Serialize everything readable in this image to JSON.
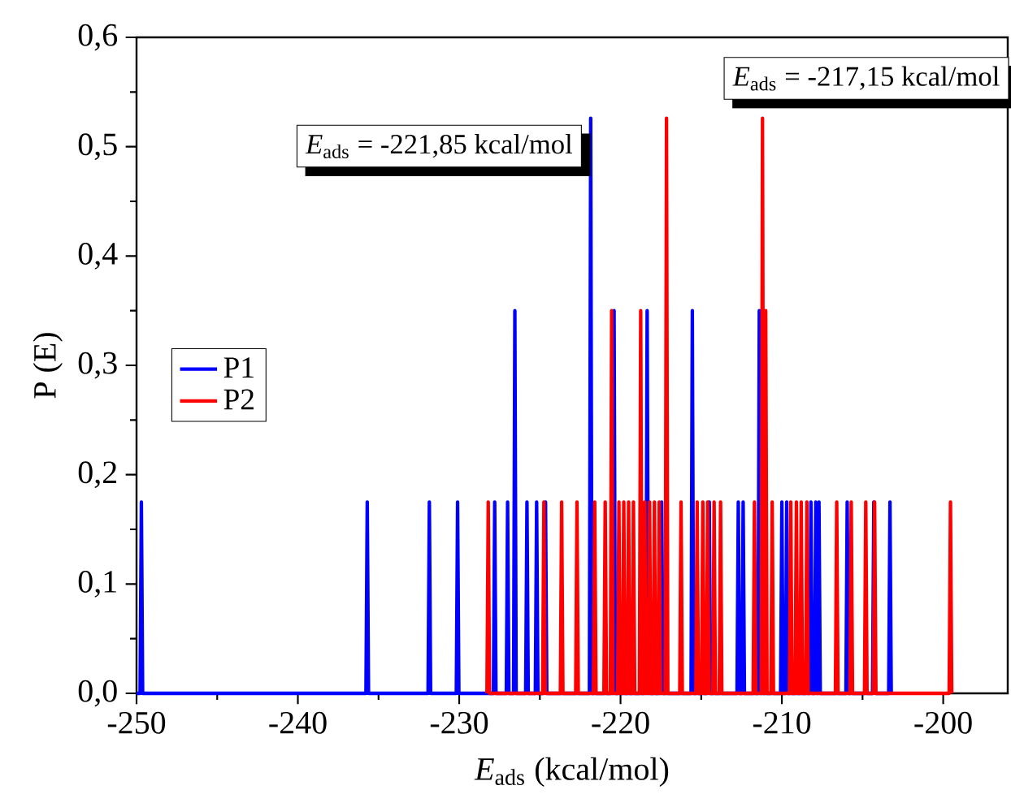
{
  "chart_data": {
    "type": "line",
    "xlabel": "*E*$_{ads}$ (kcal/mol)",
    "ylabel": "P (E)",
    "xlim": [
      -250,
      -196
    ],
    "ylim": [
      0,
      0.6
    ],
    "xticks": [
      -250,
      -240,
      -230,
      -220,
      -210,
      -200
    ],
    "yticks": [
      {
        "value": 0,
        "label": "0,0"
      },
      {
        "value": 0.1,
        "label": "0,1"
      },
      {
        "value": 0.2,
        "label": "0,2"
      },
      {
        "value": 0.3,
        "label": "0,3"
      },
      {
        "value": 0.4,
        "label": "0,4"
      },
      {
        "value": 0.5,
        "label": "0,5"
      },
      {
        "value": 0.6,
        "label": "0,6"
      }
    ],
    "legend": "left",
    "annotations": [
      {
        "text": "*E*$_{ads}$ = -221,85 kcal/mol",
        "x": -221.85,
        "y": 0.526
      },
      "*E*$_{ads}$ = -217,15 kcal/mol"
    ],
    "series": [
      {
        "name": "P1",
        "color": "#0000ff",
        "x": [
          -250,
          -249.78,
          -249.7,
          -249.62,
          -235.78,
          -235.7,
          -235.62,
          -231.93,
          -231.85,
          -231.77,
          -230.18,
          -230.1,
          -230.02,
          -227.88,
          -227.8,
          -227.72,
          -227.08,
          -227,
          -226.92,
          -226.63,
          -226.55,
          -226.47,
          -225.88,
          -225.8,
          -225.72,
          -225.28,
          -225.2,
          -225.12,
          -224.73,
          -224.65,
          -224.57,
          -221.93,
          -221.85,
          -221.77,
          -220.48,
          -220.4,
          -220.32,
          -218.43,
          -218.35,
          -218.27,
          -217.53,
          -217.45,
          -217.37,
          -215.63,
          -215.55,
          -215.47,
          -214.58,
          -214.5,
          -214.42,
          -212.78,
          -212.7,
          -212.62,
          -212.48,
          -212.4,
          -212.32,
          -211.48,
          -211.4,
          -211.32,
          -210.08,
          -210,
          -209.92,
          -209.78,
          -209.7,
          -209.62,
          -208.28,
          -208.2,
          -208.12,
          -207.98,
          -207.9,
          -207.82,
          -207.78,
          -207.7,
          -207.62,
          -206.03,
          -205.95,
          -205.87,
          -204.38,
          -204.3,
          -204.22,
          -203.38,
          -203.3,
          -203.22
        ],
        "values": [
          0,
          0,
          0.175,
          0,
          0,
          0.175,
          0,
          0,
          0.175,
          0,
          0,
          0.175,
          0,
          0,
          0.175,
          0,
          0,
          0.175,
          0,
          0,
          0.35,
          0,
          0,
          0.175,
          0,
          0,
          0.175,
          0,
          0,
          0.175,
          0,
          0,
          0.526,
          0,
          0,
          0.35,
          0,
          0,
          0.35,
          0,
          0,
          0.175,
          0,
          0,
          0.35,
          0,
          0,
          0.175,
          0,
          0,
          0.175,
          0,
          0,
          0.175,
          0,
          0,
          0.35,
          0,
          0,
          0.175,
          0,
          0,
          0.175,
          0,
          0,
          0.175,
          0,
          0,
          0.175,
          0,
          0,
          0.175,
          0,
          0,
          0.175,
          0,
          0,
          0.175,
          0,
          0,
          0.175,
          0
        ]
      },
      {
        "name": "P2",
        "color": "#ff0000",
        "x": [
          -228.28,
          -228.2,
          -228.12,
          -224.83,
          -224.75,
          -224.67,
          -223.73,
          -223.65,
          -223.57,
          -222.78,
          -222.7,
          -222.62,
          -221.68,
          -221.6,
          -221.52,
          -221.03,
          -220.95,
          -220.87,
          -220.63,
          -220.55,
          -220.47,
          -220.18,
          -220.1,
          -220.02,
          -219.88,
          -219.8,
          -219.72,
          -219.58,
          -219.5,
          -219.42,
          -219.28,
          -219.2,
          -219.12,
          -218.83,
          -218.75,
          -218.67,
          -218.58,
          -218.5,
          -218.42,
          -218.28,
          -218.2,
          -218.12,
          -217.98,
          -217.9,
          -217.82,
          -217.68,
          -217.6,
          -217.52,
          -217.23,
          -217.15,
          -217.07,
          -216.33,
          -216.25,
          -216.17,
          -215.33,
          -215.25,
          -215.17,
          -214.98,
          -214.9,
          -214.82,
          -214.68,
          -214.6,
          -214.52,
          -214.28,
          -214.2,
          -214.12,
          -213.88,
          -213.8,
          -213.72,
          -211.78,
          -211.7,
          -211.62,
          -211.28,
          -211.2,
          -211.12,
          -211.08,
          -211,
          -210.92,
          -210.68,
          -210.6,
          -210.52,
          -209.53,
          -209.45,
          -209.37,
          -209.18,
          -209.1,
          -209.02,
          -208.88,
          -208.8,
          -208.72,
          -208.53,
          -208.45,
          -208.37,
          -206.68,
          -206.6,
          -206.52,
          -205.78,
          -205.7,
          -205.62,
          -204.88,
          -204.8,
          -204.72,
          -204.33,
          -204.25,
          -204.17,
          -199.63,
          -199.55,
          -199.47
        ],
        "values": [
          0,
          0.175,
          0,
          0,
          0.175,
          0,
          0,
          0.175,
          0,
          0,
          0.175,
          0,
          0,
          0.175,
          0,
          0,
          0.175,
          0,
          0,
          0.35,
          0,
          0,
          0.175,
          0,
          0,
          0.175,
          0,
          0,
          0.175,
          0,
          0,
          0.175,
          0,
          0,
          0.35,
          0,
          0,
          0.175,
          0,
          0,
          0.175,
          0,
          0,
          0.175,
          0,
          0,
          0.175,
          0,
          0,
          0.526,
          0,
          0,
          0.175,
          0,
          0,
          0.175,
          0,
          0,
          0.175,
          0,
          0,
          0.175,
          0,
          0,
          0.175,
          0,
          0,
          0.175,
          0,
          0,
          0.175,
          0,
          0,
          0.526,
          0,
          0,
          0.35,
          0,
          0,
          0.175,
          0,
          0,
          0.175,
          0,
          0,
          0.175,
          0,
          0,
          0.175,
          0,
          0,
          0.175,
          0,
          0,
          0.175,
          0,
          0,
          0.175,
          0,
          0,
          0.175,
          0,
          0,
          0.175,
          0,
          0,
          0.175,
          0
        ]
      }
    ]
  }
}
